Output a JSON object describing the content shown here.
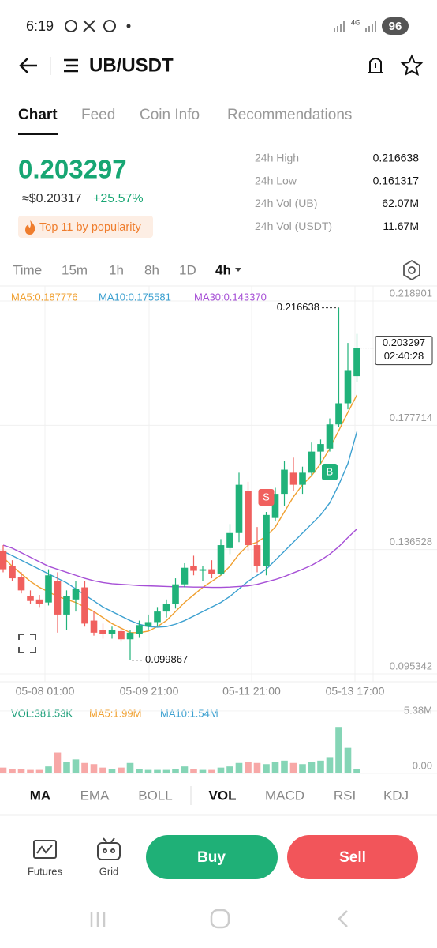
{
  "status": {
    "time": "6:19",
    "network": "4G",
    "battery": "96"
  },
  "header": {
    "pair": "UB/USDT"
  },
  "tabs": [
    "Chart",
    "Feed",
    "Coin Info",
    "Recommendations"
  ],
  "price": {
    "last": "0.203297",
    "usd": "≈$0.20317",
    "change": "+25.57%",
    "badge": "Top 11 by popularity"
  },
  "stats": [
    {
      "label": "24h High",
      "value": "0.216638"
    },
    {
      "label": "24h Low",
      "value": "0.161317"
    },
    {
      "label": "24h Vol (UB)",
      "value": "62.07M"
    },
    {
      "label": "24h Vol (USDT)",
      "value": "11.67M"
    }
  ],
  "intervals": [
    "Time",
    "15m",
    "1h",
    "8h",
    "1D",
    "4h"
  ],
  "kline": {
    "type": "candlestick",
    "ylim": [
      0.09273,
      0.22387
    ],
    "yticks": [
      0.218901,
      0.177714,
      0.136528,
      0.095342
    ],
    "up_color": "#20b27a",
    "down_color": "#f0605e",
    "candles": [
      [
        0.1362,
        0.138,
        0.129,
        0.13
      ],
      [
        0.131,
        0.133,
        0.126,
        0.127
      ],
      [
        0.1275,
        0.129,
        0.122,
        0.123
      ],
      [
        0.121,
        0.123,
        0.1185,
        0.1195
      ],
      [
        0.12,
        0.1215,
        0.1175,
        0.1185
      ],
      [
        0.119,
        0.13,
        0.118,
        0.128
      ],
      [
        0.126,
        0.129,
        0.109,
        0.115
      ],
      [
        0.115,
        0.123,
        0.11,
        0.121
      ],
      [
        0.12,
        0.126,
        0.116,
        0.1235
      ],
      [
        0.124,
        0.126,
        0.111,
        0.112
      ],
      [
        0.113,
        0.116,
        0.108,
        0.109
      ],
      [
        0.11,
        0.112,
        0.107,
        0.1085
      ],
      [
        0.1085,
        0.111,
        0.107,
        0.11
      ],
      [
        0.1095,
        0.1105,
        0.106,
        0.1068
      ],
      [
        0.1068,
        0.11,
        0.099867,
        0.109
      ],
      [
        0.1085,
        0.113,
        0.1075,
        0.1115
      ],
      [
        0.111,
        0.115,
        0.11,
        0.1125
      ],
      [
        0.1125,
        0.1175,
        0.111,
        0.116
      ],
      [
        0.116,
        0.12,
        0.114,
        0.1185
      ],
      [
        0.1185,
        0.127,
        0.117,
        0.125
      ],
      [
        0.125,
        0.132,
        0.124,
        0.1305
      ],
      [
        0.131,
        0.1345,
        0.128,
        0.1295
      ],
      [
        0.1295,
        0.131,
        0.126,
        0.13
      ],
      [
        0.13,
        0.133,
        0.127,
        0.1285
      ],
      [
        0.1285,
        0.14,
        0.128,
        0.138
      ],
      [
        0.137,
        0.145,
        0.135,
        0.142
      ],
      [
        0.142,
        0.162,
        0.139,
        0.158
      ],
      [
        0.156,
        0.159,
        0.136,
        0.138
      ],
      [
        0.138,
        0.144,
        0.129,
        0.131
      ],
      [
        0.131,
        0.149,
        0.128,
        0.148
      ],
      [
        0.147,
        0.157,
        0.146,
        0.155
      ],
      [
        0.155,
        0.166,
        0.151,
        0.163
      ],
      [
        0.162,
        0.167,
        0.156,
        0.158
      ],
      [
        0.158,
        0.164,
        0.155,
        0.162
      ],
      [
        0.162,
        0.172,
        0.161,
        0.169
      ],
      [
        0.169,
        0.173,
        0.165,
        0.1715
      ],
      [
        0.17,
        0.18,
        0.169,
        0.178
      ],
      [
        0.178,
        0.216638,
        0.177,
        0.185
      ],
      [
        0.185,
        0.205,
        0.183,
        0.196
      ],
      [
        0.194,
        0.208,
        0.192,
        0.203297
      ]
    ],
    "ma": [
      {
        "label": "MA5:0.187776",
        "color": "#f0a030",
        "values": [
          0.134,
          0.131,
          0.1285,
          0.126,
          0.124,
          0.1225,
          0.121,
          0.12,
          0.119,
          0.1175,
          0.116,
          0.114,
          0.112,
          0.1105,
          0.109,
          0.109,
          0.1095,
          0.111,
          0.113,
          0.116,
          0.119,
          0.1215,
          0.124,
          0.126,
          0.128,
          0.131,
          0.135,
          0.138,
          0.139,
          0.141,
          0.144,
          0.149,
          0.154,
          0.158,
          0.161,
          0.165,
          0.17,
          0.176,
          0.182,
          0.187776
        ]
      },
      {
        "label": "MA10:0.175581",
        "color": "#3ca0d0",
        "values": [
          0.136,
          0.1345,
          0.133,
          0.1315,
          0.13,
          0.1285,
          0.127,
          0.1255,
          0.1235,
          0.1215,
          0.1195,
          0.1175,
          0.116,
          0.1145,
          0.113,
          0.1118,
          0.111,
          0.1108,
          0.111,
          0.1118,
          0.113,
          0.1145,
          0.116,
          0.1175,
          0.119,
          0.121,
          0.1235,
          0.126,
          0.128,
          0.13,
          0.133,
          0.136,
          0.139,
          0.142,
          0.145,
          0.148,
          0.152,
          0.158,
          0.165,
          0.175581
        ]
      },
      {
        "label": "MA30:0.143370",
        "color": "#a64fd6",
        "values": [
          0.138,
          0.137,
          0.1355,
          0.134,
          0.1325,
          0.131,
          0.13,
          0.129,
          0.128,
          0.127,
          0.1262,
          0.1256,
          0.1252,
          0.125,
          0.1248,
          0.1246,
          0.1245,
          0.1244,
          0.1243,
          0.1242,
          0.1242,
          0.1241,
          0.1241,
          0.124,
          0.124,
          0.1241,
          0.1243,
          0.1245,
          0.125,
          0.1258,
          0.1266,
          0.1276,
          0.1288,
          0.13,
          0.1313,
          0.133,
          0.135,
          0.1375,
          0.1405,
          0.14337
        ]
      }
    ],
    "countdown": "02:40:28",
    "x_labels": [
      "05-08 01:00",
      "05-09 21:00",
      "05-11 21:00",
      "05-13 17:00"
    ],
    "signals": [
      "S",
      "B"
    ]
  },
  "volume": {
    "legend": [
      {
        "label": "VOL:381.53K",
        "color": "#1a9e78"
      },
      {
        "label": "MA5:1.99M",
        "color": "#f0a030"
      },
      {
        "label": "MA10:1.54M",
        "color": "#3ca0d0"
      }
    ],
    "ylim": [
      0,
      6.19
    ],
    "yticks": [
      {
        "value": 5.38,
        "label": "5.38M"
      },
      {
        "value": 0,
        "label": "0.00"
      }
    ],
    "values": [
      0.5,
      0.4,
      0.4,
      0.3,
      0.3,
      0.6,
      1.8,
      1.0,
      1.2,
      0.9,
      0.8,
      0.5,
      0.4,
      0.5,
      0.9,
      0.4,
      0.3,
      0.3,
      0.3,
      0.4,
      0.6,
      0.4,
      0.3,
      0.3,
      0.5,
      0.6,
      0.9,
      1.0,
      0.9,
      0.8,
      1.0,
      1.1,
      0.9,
      0.8,
      1.0,
      1.1,
      1.4,
      4.0,
      2.2,
      0.38153
    ]
  },
  "indicators": [
    "MA",
    "EMA",
    "BOLL",
    "VOL",
    "MACD",
    "RSI",
    "KDJ"
  ],
  "actions": {
    "futures": "Futures",
    "grid": "Grid",
    "buy": "Buy",
    "sell": "Sell"
  }
}
